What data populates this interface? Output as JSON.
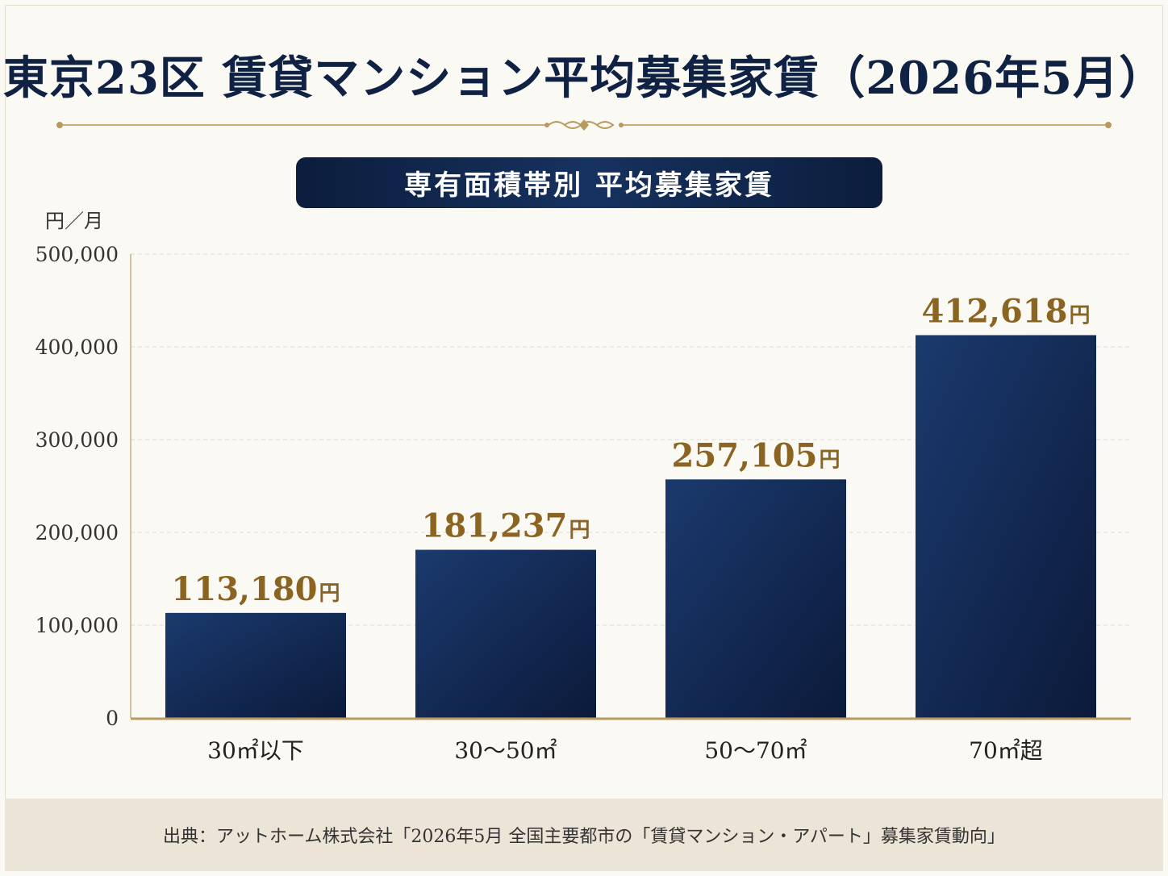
{
  "title": "東京23区 賃貸マンション平均募集家賃（2026年5月）",
  "subtitle": "専有面積帯別 平均募集家賃",
  "source": "出典：アットホーム株式会社「2026年5月 全国主要都市の「賃貸マンション・アパート」募集家賃動向」",
  "colors": {
    "navy": "#0f2244",
    "gold": "#8a6420",
    "line": "#b89a5e",
    "grid": "#dedad2"
  },
  "chart_data": {
    "type": "bar",
    "title": "専有面積帯別 平均募集家賃",
    "ylabel": "円／月",
    "ylim": [
      0,
      500000
    ],
    "yticks": [
      "0",
      "100,000",
      "200,000",
      "300,000",
      "400,000",
      "500,000"
    ],
    "categories": [
      "30㎡以下",
      "30〜50㎡",
      "50〜70㎡",
      "70㎡超"
    ],
    "values": [
      113180,
      181237,
      257105,
      412618
    ],
    "value_labels": [
      "113,180",
      "181,237",
      "257,105",
      "412,618"
    ],
    "value_unit": "円",
    "grid": true
  }
}
